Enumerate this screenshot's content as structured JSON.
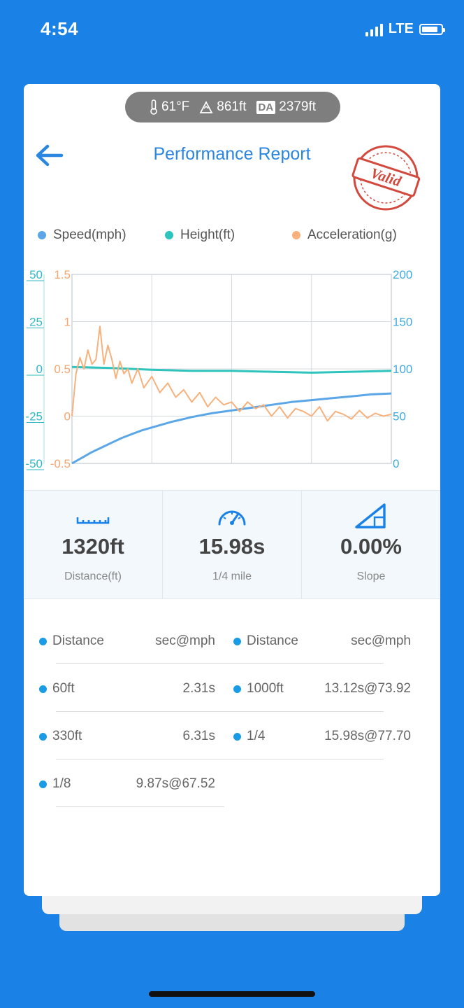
{
  "status_bar": {
    "time": "4:54",
    "network": "LTE"
  },
  "conditions": {
    "temperature": "61°F",
    "altitude": "861ft",
    "da_label": "DA",
    "density_altitude": "2379ft"
  },
  "header": {
    "title": "Performance Report",
    "stamp_text": "Valid"
  },
  "legend": [
    {
      "label": "Speed(mph)",
      "color": "#5aa6e6"
    },
    {
      "label": "Height(ft)",
      "color": "#2ec4bd"
    },
    {
      "label": "Acceleration(g)",
      "color": "#f6b17c"
    }
  ],
  "chart_data": {
    "type": "line",
    "axes": {
      "height_ticks": [
        "50",
        "25",
        "0",
        "-25",
        "-50"
      ],
      "accel_ticks": [
        "1.5",
        "1",
        "0.5",
        "0",
        "-0.5"
      ],
      "speed_ticks": [
        "200",
        "150",
        "100",
        "50",
        "0"
      ],
      "height_range": [
        -50,
        50
      ],
      "accel_range": [
        -0.5,
        1.5
      ],
      "speed_range": [
        0,
        200
      ]
    },
    "x_range": [
      0,
      16
    ],
    "grid": true,
    "series": [
      {
        "name": "Speed(mph)",
        "axis": "speed",
        "x": [
          0,
          0.5,
          1,
          1.5,
          2,
          2.5,
          3,
          3.5,
          4,
          5,
          6,
          7,
          8,
          9,
          10,
          11,
          12,
          13,
          14,
          15,
          16
        ],
        "y": [
          0,
          6,
          12,
          17,
          22,
          27,
          31,
          35,
          38,
          44,
          49,
          53,
          56,
          59,
          62,
          65,
          67,
          69,
          71,
          73,
          74
        ]
      },
      {
        "name": "Height(ft)",
        "axis": "height",
        "x": [
          0,
          2,
          4,
          6,
          8,
          10,
          12,
          14,
          16
        ],
        "y": [
          1,
          0.5,
          -0.5,
          -1,
          -1,
          -1.5,
          -2,
          -1.5,
          -1
        ]
      },
      {
        "name": "Acceleration(g)",
        "axis": "accel",
        "x": [
          0,
          0.2,
          0.4,
          0.6,
          0.8,
          1,
          1.2,
          1.4,
          1.6,
          1.8,
          2,
          2.2,
          2.4,
          2.6,
          2.8,
          3,
          3.3,
          3.6,
          4,
          4.4,
          4.8,
          5.2,
          5.6,
          6,
          6.4,
          6.8,
          7.2,
          7.6,
          8,
          8.4,
          8.8,
          9.2,
          9.6,
          10,
          10.4,
          10.8,
          11.2,
          11.6,
          12,
          12.4,
          12.8,
          13.2,
          13.6,
          14,
          14.4,
          14.8,
          15.2,
          15.6,
          16
        ],
        "y": [
          0.0,
          0.45,
          0.62,
          0.5,
          0.7,
          0.55,
          0.6,
          0.95,
          0.55,
          0.75,
          0.6,
          0.4,
          0.58,
          0.45,
          0.5,
          0.35,
          0.5,
          0.3,
          0.42,
          0.25,
          0.35,
          0.2,
          0.28,
          0.15,
          0.25,
          0.1,
          0.2,
          0.12,
          0.15,
          0.05,
          0.15,
          0.08,
          0.12,
          0.0,
          0.1,
          -0.02,
          0.08,
          0.05,
          0.0,
          0.1,
          -0.05,
          0.05,
          0.02,
          -0.03,
          0.06,
          -0.02,
          0.03,
          0.0,
          0.02
        ]
      }
    ]
  },
  "stats": [
    {
      "icon": "ruler-icon",
      "value": "1320ft",
      "label": "Distance(ft)"
    },
    {
      "icon": "speedometer-icon",
      "value": "15.98s",
      "label": "1/4 mile"
    },
    {
      "icon": "slope-icon",
      "value": "0.00%",
      "label": "Slope"
    }
  ],
  "splits": {
    "headers": {
      "distance": "Distance",
      "time": "sec@mph"
    },
    "left": [
      {
        "distance": "60ft",
        "time": "2.31s"
      },
      {
        "distance": "330ft",
        "time": "6.31s"
      },
      {
        "distance": "1/8",
        "time": "9.87s@67.52"
      }
    ],
    "right": [
      {
        "distance": "1000ft",
        "time": "13.12s@73.92"
      },
      {
        "distance": "1/4",
        "time": "15.98s@77.70"
      }
    ]
  }
}
